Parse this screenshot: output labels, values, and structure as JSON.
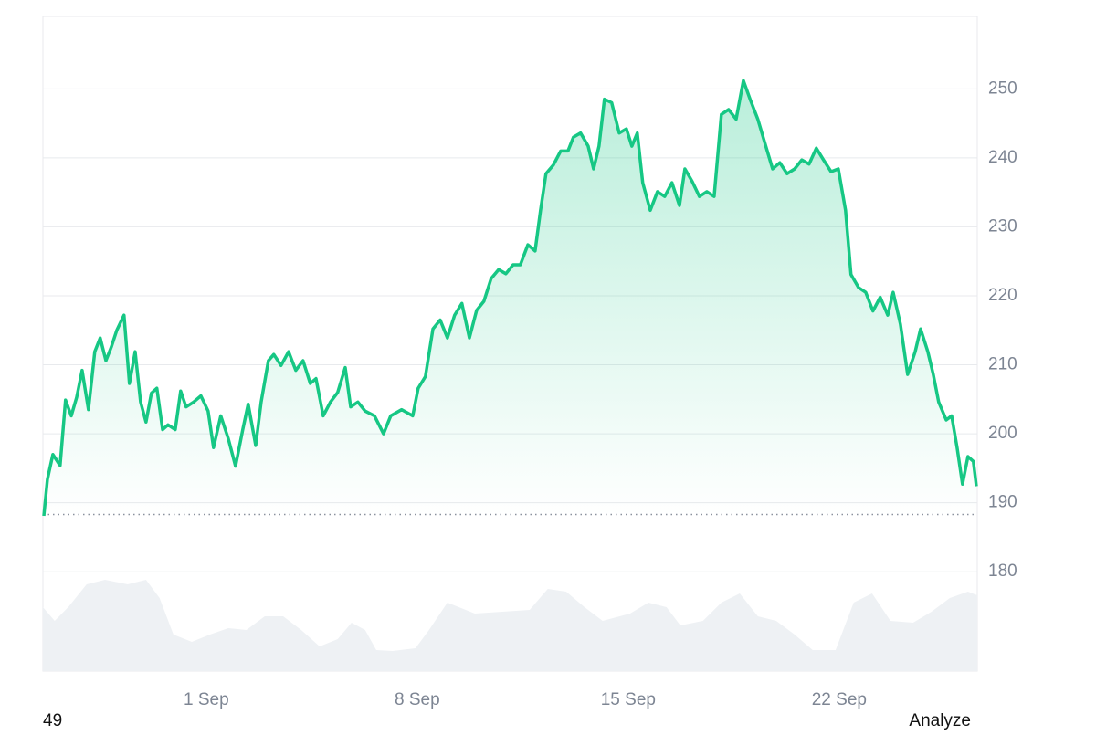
{
  "chart_data": {
    "type": "line",
    "color": "#16c784",
    "x": [
      -4.39,
      -4.27,
      -4.09,
      -3.85,
      -3.67,
      -3.48,
      -3.3,
      -3.12,
      -2.91,
      -2.7,
      -2.52,
      -2.33,
      -2.15,
      -1.97,
      -1.73,
      -1.55,
      -1.36,
      -1.18,
      -1.0,
      -0.82,
      -0.64,
      -0.45,
      -0.27,
      -0.03,
      0.15,
      0.33,
      0.58,
      0.82,
      1.06,
      1.24,
      1.48,
      1.73,
      1.97,
      2.21,
      2.39,
      2.64,
      2.82,
      3.06,
      3.24,
      3.48,
      3.73,
      3.97,
      4.21,
      4.45,
      4.64,
      4.88,
      5.12,
      5.36,
      5.61,
      5.79,
      6.03,
      6.27,
      6.58,
      6.88,
      7.12,
      7.48,
      7.85,
      8.03,
      8.27,
      8.52,
      8.76,
      9.0,
      9.24,
      9.48,
      9.73,
      9.97,
      10.21,
      10.45,
      10.7,
      10.94,
      11.18,
      11.42,
      11.67,
      11.91,
      12.09,
      12.27,
      12.52,
      12.76,
      13.0,
      13.18,
      13.42,
      13.67,
      13.85,
      14.03,
      14.21,
      14.45,
      14.7,
      14.94,
      15.12,
      15.3,
      15.48,
      15.73,
      15.97,
      16.21,
      16.45,
      16.7,
      16.88,
      17.12,
      17.36,
      17.61,
      17.85,
      18.09,
      18.33,
      18.58,
      18.82,
      19.06,
      19.3,
      19.55,
      19.79,
      20.03,
      20.27,
      20.52,
      20.76,
      21.0,
      21.24,
      21.48,
      21.73,
      21.97,
      22.21,
      22.39,
      22.64,
      22.88,
      23.12,
      23.36,
      23.61,
      23.79,
      24.03,
      24.27,
      24.52,
      24.7,
      24.94,
      25.12,
      25.3,
      25.55,
      25.73,
      25.91,
      26.09,
      26.27,
      26.45,
      26.55
    ],
    "values": [
      188.1,
      193.4,
      197.0,
      195.4,
      204.9,
      202.6,
      205.3,
      209.2,
      203.5,
      211.9,
      213.9,
      210.6,
      212.6,
      215.0,
      217.2,
      207.3,
      211.9,
      204.6,
      201.7,
      205.9,
      206.6,
      200.6,
      201.3,
      200.6,
      206.2,
      203.9,
      204.6,
      205.5,
      203.3,
      198.0,
      202.6,
      199.3,
      195.3,
      200.6,
      204.3,
      198.3,
      204.6,
      210.6,
      211.5,
      209.9,
      211.9,
      209.2,
      210.6,
      207.3,
      208.0,
      202.6,
      204.6,
      206.0,
      209.6,
      203.9,
      204.6,
      203.3,
      202.6,
      200.0,
      202.6,
      203.5,
      202.6,
      206.6,
      208.3,
      215.2,
      216.5,
      213.9,
      217.2,
      218.9,
      213.9,
      217.9,
      219.2,
      222.5,
      223.8,
      223.2,
      224.5,
      224.5,
      227.4,
      226.5,
      232.4,
      237.7,
      239.0,
      241.0,
      241.0,
      243.0,
      243.6,
      241.7,
      238.4,
      241.7,
      248.5,
      248.0,
      243.6,
      244.2,
      241.7,
      243.6,
      236.4,
      232.4,
      235.1,
      234.4,
      236.4,
      233.1,
      238.4,
      236.6,
      234.4,
      235.1,
      234.4,
      246.3,
      247.0,
      245.6,
      251.2,
      248.3,
      245.6,
      241.9,
      238.4,
      239.3,
      237.7,
      238.4,
      239.7,
      239.1,
      241.4,
      239.7,
      238.0,
      238.4,
      232.4,
      223.1,
      221.2,
      220.5,
      217.8,
      219.8,
      217.2,
      220.5,
      215.9,
      208.6,
      211.9,
      215.2,
      211.9,
      208.6,
      204.6,
      202.0,
      202.6,
      198.0,
      192.7,
      196.7,
      196.0,
      192.4
    ],
    "xlim": [
      -4.42,
      26.58
    ],
    "xticks": [
      {
        "value": 1,
        "label": "1 Sep"
      },
      {
        "value": 8,
        "label": "8 Sep"
      },
      {
        "value": 15,
        "label": "15 Sep"
      },
      {
        "value": 22,
        "label": "22 Sep"
      }
    ],
    "ylim": [
      165.6,
      260.5
    ],
    "yticks": [
      180,
      190,
      200,
      210,
      220,
      230,
      240,
      250
    ],
    "grid": true,
    "reference_line": {
      "value": 188.3,
      "color": "#8a919e"
    },
    "volume": {
      "color": "#eef1f4",
      "ylim": [
        0,
        117
      ],
      "x": [
        -4.42,
        -4.03,
        -3.58,
        -2.97,
        -2.36,
        -1.61,
        -1.0,
        -0.55,
        -0.09,
        0.52,
        1.12,
        1.73,
        2.33,
        2.94,
        3.55,
        4.15,
        4.76,
        5.36,
        5.82,
        6.27,
        6.64,
        7.18,
        7.94,
        8.39,
        9.0,
        9.91,
        10.82,
        11.73,
        12.33,
        12.94,
        13.55,
        14.15,
        15.06,
        15.67,
        16.27,
        16.73,
        17.48,
        18.09,
        18.7,
        19.3,
        19.91,
        20.52,
        21.12,
        21.88,
        22.48,
        23.09,
        23.7,
        24.45,
        25.06,
        25.67,
        26.27,
        26.58
      ],
      "values": [
        70,
        55,
        70,
        95,
        100,
        95,
        100,
        80,
        40,
        32,
        40,
        47,
        45,
        60,
        60,
        45,
        27,
        35,
        53,
        45,
        23,
        22,
        25,
        45,
        75,
        63,
        65,
        67,
        90,
        87,
        70,
        55,
        63,
        75,
        70,
        50,
        55,
        75,
        85,
        60,
        55,
        40,
        23,
        23,
        75,
        85,
        55,
        53,
        65,
        80,
        87,
        83
      ]
    }
  },
  "footer": {
    "left": "49",
    "right": "Analyze"
  }
}
